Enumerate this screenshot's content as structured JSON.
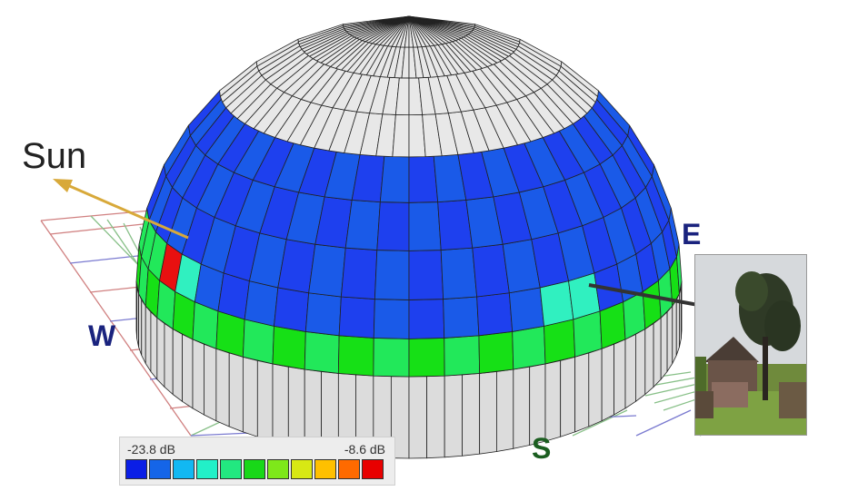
{
  "labels": {
    "sun": "Sun",
    "east": "E",
    "west": "W",
    "south": "S"
  },
  "legend": {
    "min_label": "-23.8 dB",
    "max_label": "-8.6 dB",
    "colors": [
      "#0a1ee6",
      "#1565e8",
      "#12b8f2",
      "#22f0c8",
      "#22e880",
      "#18d818",
      "#7ee81a",
      "#d8e814",
      "#ffc000",
      "#ff6a00",
      "#e80000"
    ]
  },
  "dome": {
    "grid_color": "#222222",
    "top_cap_color": "#e8e8e8",
    "base_color": "#dcdcdc",
    "blue_band_colors": [
      "#1e40ee",
      "#1a5ae8"
    ],
    "green_band_colors": [
      "#16e016",
      "#22e85a"
    ],
    "sun_patch_color": "#e81010",
    "cyan_patch_color": "#30f0c0"
  },
  "colors": {
    "sun_arrow": "#d8a93a",
    "photo_arrow": "#333333",
    "ground_grid_red": "#d08080",
    "ground_grid_green": "#88c088",
    "ground_grid_blue": "#7a7ad0"
  },
  "photo": {
    "icon": "barn-tree-photo"
  }
}
